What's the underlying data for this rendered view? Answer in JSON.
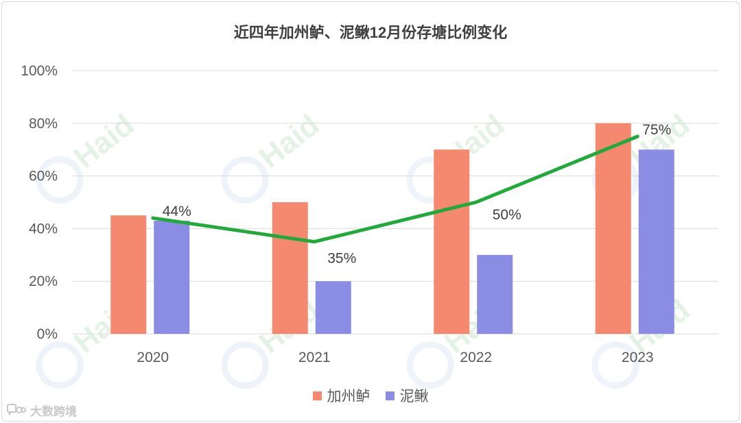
{
  "chart_data": {
    "type": "bar",
    "title": "近四年加州鲈、泥鳅12月份存塘比例变化",
    "categories": [
      "2020",
      "2021",
      "2022",
      "2023"
    ],
    "series": [
      {
        "name": "加州鲈",
        "type": "bar",
        "color": "#f4896f",
        "values": [
          45,
          50,
          70,
          80
        ]
      },
      {
        "name": "泥鳅",
        "type": "bar",
        "color": "#8a8de3",
        "values": [
          43,
          20,
          30,
          70
        ]
      },
      {
        "name": "",
        "type": "line",
        "color": "#1faa3a",
        "values": [
          44,
          35,
          50,
          75
        ]
      }
    ],
    "data_labels": [
      "44%",
      "35%",
      "50%",
      "75%"
    ],
    "yticks": [
      "0%",
      "20%",
      "40%",
      "60%",
      "80%",
      "100%"
    ],
    "ylim": [
      0,
      100
    ],
    "grid": true,
    "legend_position": "bottom"
  },
  "watermark": {
    "text": "Haid"
  },
  "source_mark": {
    "text": "大数跨境",
    "icon": "chat-bubble-icon"
  }
}
